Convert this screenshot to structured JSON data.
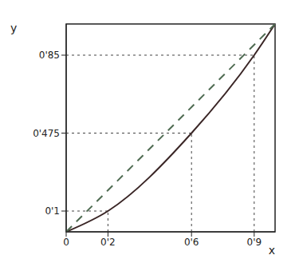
{
  "chart_data": {
    "type": "line",
    "x_label": "x",
    "y_label": "y",
    "x": [
      0,
      0.2,
      0.6,
      0.9,
      1
    ],
    "series": [
      {
        "values": [
          0,
          0.1,
          0.475,
          0.85,
          1
        ],
        "color": "#3a2626",
        "line_style": "solid"
      },
      {
        "values": [
          0,
          0.2,
          0.6,
          0.9,
          1
        ],
        "color": "#4f6b52",
        "line_style": "dashed"
      }
    ],
    "xlim": [
      0,
      1
    ],
    "ylim": [
      0,
      1
    ],
    "xticks": [
      0,
      {
        "value": 0.2,
        "label": "0'2"
      },
      {
        "value": 0.6,
        "label": "0'6"
      },
      {
        "value": 0.9,
        "label": "0'9"
      }
    ],
    "yticks": [
      {
        "value": 0.1,
        "label": "0'1"
      },
      {
        "value": 0.475,
        "label": "0'475"
      },
      {
        "value": 0.85,
        "label": "0'85"
      }
    ],
    "grid": false
  }
}
